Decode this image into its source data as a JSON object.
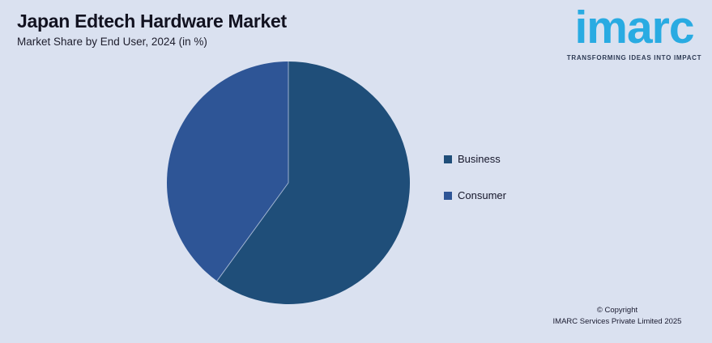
{
  "page": {
    "background_color": "#dae1f0"
  },
  "header": {
    "title": "Japan Edtech Hardware Market",
    "subtitle": "Market Share by End User, 2024 (in %)"
  },
  "logo": {
    "brand": "imarc",
    "tagline": "TRANSFORMING IDEAS INTO IMPACT",
    "brand_color": "#29abe2",
    "tagline_color": "#2e3b55"
  },
  "chart_data": {
    "type": "pie",
    "title": "Japan Edtech Hardware Market",
    "subtitle": "Market Share by End User, 2024 (in %)",
    "categories": [
      "Business",
      "Consumer"
    ],
    "values": [
      60,
      40
    ],
    "unit": "%",
    "colors": [
      "#1f4e79",
      "#2e5596"
    ],
    "start_angle_deg": 0,
    "direction": "clockwise",
    "data_labels_shown": false,
    "legend_position": "right",
    "separator_color": "#ccd7ea"
  },
  "legend": {
    "items": [
      {
        "label": "Business",
        "color": "#1f4e79"
      },
      {
        "label": "Consumer",
        "color": "#2e5596"
      }
    ]
  },
  "footer": {
    "line1": "© Copyright",
    "line2": "IMARC Services Private Limited 2025"
  }
}
